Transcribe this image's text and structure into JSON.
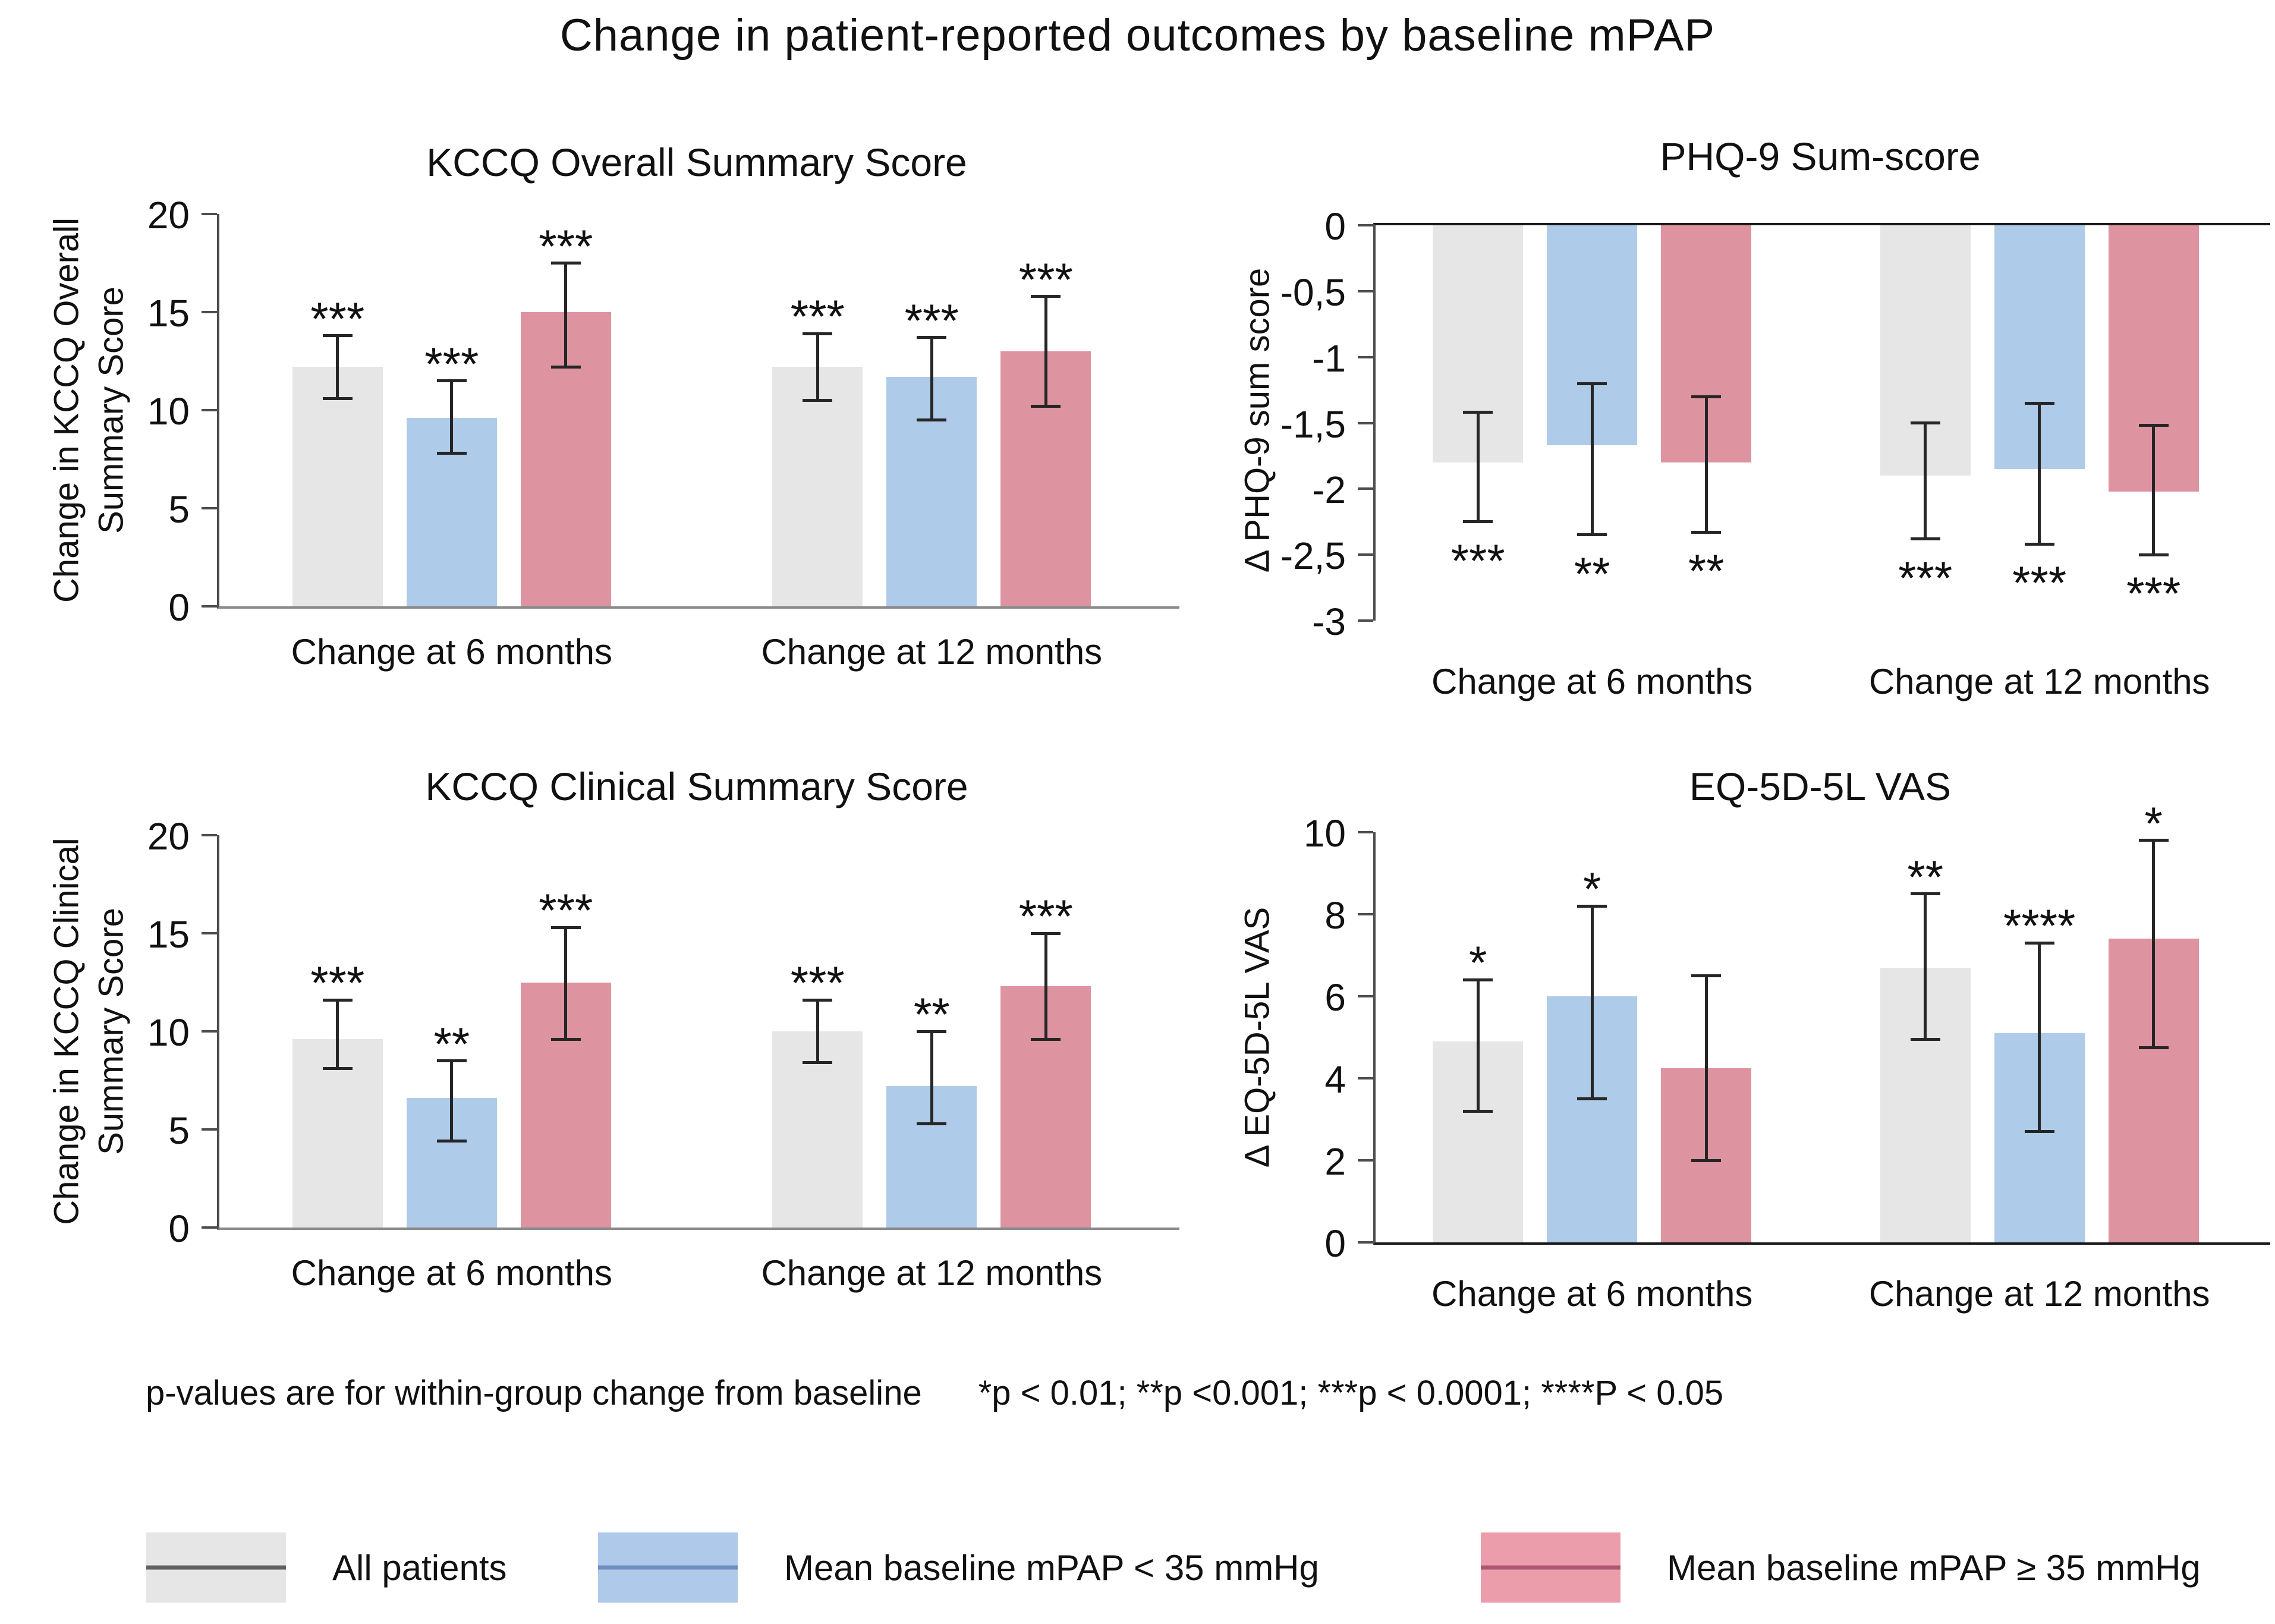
{
  "page_title": "Change in patient-reported outcomes by baseline mPAP",
  "footnote": {
    "part1": "p-values are for within-group change from baseline",
    "part2": "*p < 0.01; **p <0.001; ***p < 0.0001; ****P < 0.05"
  },
  "legend": {
    "items": [
      {
        "label": "All patients",
        "fill": "#E6E6E6",
        "line": "#616161"
      },
      {
        "label": "Mean baseline mPAP < 35 mmHg",
        "fill": "#AFC9EB",
        "line": "#6E8FBF"
      },
      {
        "label": "Mean baseline mPAP ≥ 35 mmHg",
        "fill": "#EC9DAC",
        "line": "#AE5672"
      }
    ]
  },
  "colors": {
    "series_fills": [
      "#E6E6E6",
      "#AFCBEA",
      "#DE93A0"
    ],
    "error_bar": "#262626",
    "axis": "#4d4d4d",
    "baseline_gray": "#8a8a8a",
    "baseline_black": "#1a1a1a"
  },
  "chart_data": [
    {
      "type": "bar",
      "title": "KCCQ Overall Summary Score",
      "ylabel_lines": [
        "Change in KCCQ Overall",
        "Summary Score"
      ],
      "ylim": [
        0,
        20
      ],
      "yticks": [
        20,
        15,
        10,
        5,
        0
      ],
      "ytick_labels": [
        "20",
        "15",
        "10",
        "5",
        "0"
      ],
      "categories": [
        "Change at 6 months",
        "Change at 12 months"
      ],
      "series": [
        {
          "name": "All patients",
          "values": [
            12.2,
            12.2
          ],
          "err_low": [
            10.6,
            10.5
          ],
          "err_high": [
            13.8,
            13.9
          ],
          "sig": [
            "***",
            "***"
          ]
        },
        {
          "name": "Mean baseline mPAP < 35 mmHg",
          "values": [
            9.6,
            11.7
          ],
          "err_low": [
            7.8,
            9.5
          ],
          "err_high": [
            11.5,
            13.7
          ],
          "sig": [
            "***",
            "***"
          ]
        },
        {
          "name": "Mean baseline mPAP ≥ 35 mmHg",
          "values": [
            15.0,
            13.0
          ],
          "err_low": [
            12.2,
            10.2
          ],
          "err_high": [
            17.5,
            15.8
          ],
          "sig": [
            "***",
            "***"
          ]
        }
      ]
    },
    {
      "type": "bar",
      "title": "PHQ-9 Sum-score",
      "ylabel_lines": [
        "Δ PHQ-9 sum score"
      ],
      "ylim": [
        -3,
        0
      ],
      "yticks": [
        0,
        -0.5,
        -1,
        -1.5,
        -2,
        -2.5,
        -3
      ],
      "ytick_labels": [
        "0",
        "-0,5",
        "-1",
        "-1,5",
        "-2",
        "-2,5",
        "-3"
      ],
      "categories": [
        "Change at 6 months",
        "Change at 12 months"
      ],
      "series": [
        {
          "name": "All patients",
          "values": [
            -1.8,
            -1.9
          ],
          "err_low": [
            -2.25,
            -2.38
          ],
          "err_high": [
            -1.42,
            -1.5
          ],
          "sig": [
            "***",
            "***"
          ]
        },
        {
          "name": "Mean baseline mPAP < 35 mmHg",
          "values": [
            -1.67,
            -1.85
          ],
          "err_low": [
            -2.35,
            -2.42
          ],
          "err_high": [
            -1.2,
            -1.35
          ],
          "sig": [
            "**",
            "***"
          ]
        },
        {
          "name": "Mean baseline mPAP ≥ 35 mmHg",
          "values": [
            -1.8,
            -2.02
          ],
          "err_low": [
            -2.33,
            -2.5
          ],
          "err_high": [
            -1.3,
            -1.52
          ],
          "sig": [
            "**",
            "***"
          ]
        }
      ]
    },
    {
      "type": "bar",
      "title": "KCCQ Clinical Summary Score",
      "ylabel_lines": [
        "Change in KCCQ Clinical",
        "Summary Score"
      ],
      "ylim": [
        0,
        20
      ],
      "yticks": [
        20,
        15,
        10,
        5,
        0
      ],
      "ytick_labels": [
        "20",
        "15",
        "10",
        "5",
        "0"
      ],
      "categories": [
        "Change at 6 months",
        "Change at 12 months"
      ],
      "series": [
        {
          "name": "All patients",
          "values": [
            9.6,
            10.0
          ],
          "err_low": [
            8.1,
            8.4
          ],
          "err_high": [
            11.6,
            11.6
          ],
          "sig": [
            "***",
            "***"
          ]
        },
        {
          "name": "Mean baseline mPAP < 35 mmHg",
          "values": [
            6.6,
            7.2
          ],
          "err_low": [
            4.4,
            5.3
          ],
          "err_high": [
            8.5,
            10.0
          ],
          "sig": [
            "**",
            "**"
          ]
        },
        {
          "name": "Mean baseline mPAP ≥ 35 mmHg",
          "values": [
            12.5,
            12.3
          ],
          "err_low": [
            9.6,
            9.6
          ],
          "err_high": [
            15.3,
            15.0
          ],
          "sig": [
            "***",
            "***"
          ]
        }
      ]
    },
    {
      "type": "bar",
      "title": "EQ-5D-5L VAS",
      "ylabel_lines": [
        "Δ EQ-5D-5L VAS"
      ],
      "ylim": [
        0,
        10
      ],
      "yticks": [
        10,
        8,
        6,
        4,
        2,
        0
      ],
      "ytick_labels": [
        "10",
        "8",
        "6",
        "4",
        "2",
        "0"
      ],
      "categories": [
        "Change at 6 months",
        "Change at 12 months"
      ],
      "series": [
        {
          "name": "All patients",
          "values": [
            4.9,
            6.7
          ],
          "err_low": [
            3.2,
            4.95
          ],
          "err_high": [
            6.4,
            8.5
          ],
          "sig": [
            "*",
            "**"
          ]
        },
        {
          "name": "Mean baseline mPAP < 35 mmHg",
          "values": [
            6.0,
            5.1
          ],
          "err_low": [
            3.5,
            2.7
          ],
          "err_high": [
            8.2,
            7.3
          ],
          "sig": [
            "*",
            "****"
          ]
        },
        {
          "name": "Mean baseline mPAP ≥ 35 mmHg",
          "values": [
            4.25,
            7.4
          ],
          "err_low": [
            2.0,
            4.75
          ],
          "err_high": [
            6.5,
            9.8
          ],
          "sig": [
            "",
            "*"
          ]
        }
      ]
    }
  ]
}
